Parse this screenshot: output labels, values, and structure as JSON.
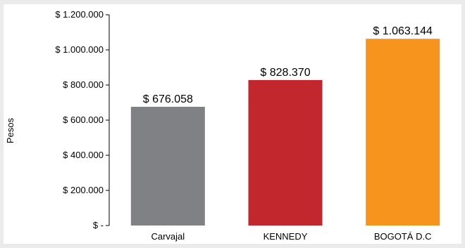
{
  "chart_data": {
    "type": "bar",
    "title": "",
    "xlabel": "",
    "ylabel": "Pesos",
    "ylim": [
      0,
      1200000
    ],
    "y_ticks": [
      0,
      200000,
      400000,
      600000,
      800000,
      1000000,
      1200000
    ],
    "y_tick_labels": [
      "$ -",
      "$ 200.000",
      "$ 400.000",
      "$ 600.000",
      "$ 800.000",
      "$ 1.000.000",
      "$ 1.200.000"
    ],
    "grid": false,
    "legend": "none",
    "categories": [
      "Carvajal",
      "KENNEDY",
      "BOGOTÁ D.C"
    ],
    "values": [
      676058,
      828370,
      1063144
    ],
    "data_labels": [
      "$ 676.058",
      "$ 828.370",
      "$ 1.063.144"
    ],
    "colors": [
      "#808184",
      "#c1272d",
      "#f7941d"
    ]
  }
}
